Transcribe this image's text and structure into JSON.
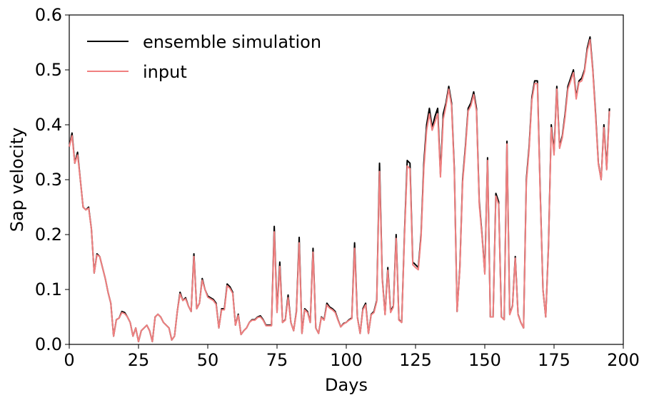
{
  "chart_data": {
    "type": "line",
    "xlabel": "Days",
    "ylabel": "Sap velocity",
    "xlim": [
      0,
      200
    ],
    "xticks": [
      0,
      25,
      50,
      75,
      100,
      125,
      150,
      175,
      200
    ],
    "ylim": [
      0,
      0.6
    ],
    "yticks": [
      {
        "value": 0,
        "label": "0.0"
      },
      0.1,
      0.2,
      0.3,
      0.4,
      0.5,
      0.6
    ],
    "legend": "upper left",
    "x": [
      0,
      1,
      2,
      3,
      4,
      5,
      6,
      7,
      8,
      9,
      10,
      11,
      12,
      13,
      14,
      15,
      16,
      17,
      18,
      19,
      20,
      21,
      22,
      23,
      24,
      25,
      26,
      27,
      28,
      29,
      30,
      31,
      32,
      33,
      34,
      35,
      36,
      37,
      38,
      39,
      40,
      41,
      42,
      43,
      44,
      45,
      46,
      47,
      48,
      49,
      50,
      51,
      52,
      53,
      54,
      55,
      56,
      57,
      58,
      59,
      60,
      61,
      62,
      63,
      64,
      65,
      66,
      67,
      68,
      69,
      70,
      71,
      72,
      73,
      74,
      75,
      76,
      77,
      78,
      79,
      80,
      81,
      82,
      83,
      84,
      85,
      86,
      87,
      88,
      89,
      90,
      91,
      92,
      93,
      94,
      95,
      96,
      97,
      98,
      99,
      100,
      101,
      102,
      103,
      104,
      105,
      106,
      107,
      108,
      109,
      110,
      111,
      112,
      113,
      114,
      115,
      116,
      117,
      118,
      119,
      120,
      121,
      122,
      123,
      124,
      125,
      126,
      127,
      128,
      129,
      130,
      131,
      132,
      133,
      134,
      135,
      136,
      137,
      138,
      139,
      140,
      141,
      142,
      143,
      144,
      145,
      146,
      147,
      148,
      149,
      150,
      151,
      152,
      153,
      154,
      155,
      156,
      157,
      158,
      159,
      160,
      161,
      162,
      163,
      164,
      165,
      166,
      167,
      168,
      169,
      170,
      171,
      172,
      173,
      174,
      175,
      176,
      177,
      178,
      179,
      180,
      181,
      182,
      183,
      184,
      185,
      186,
      187,
      188,
      189,
      190,
      191,
      192,
      193,
      194,
      195
    ],
    "series": [
      {
        "name": "ensemble simulation",
        "color": "#000000",
        "values": [
          0.36,
          0.385,
          0.33,
          0.35,
          0.3,
          0.25,
          0.245,
          0.25,
          0.21,
          0.13,
          0.165,
          0.16,
          0.14,
          0.12,
          0.095,
          0.075,
          0.015,
          0.045,
          0.048,
          0.06,
          0.058,
          0.05,
          0.04,
          0.015,
          0.03,
          0.005,
          0.025,
          0.03,
          0.035,
          0.025,
          0.005,
          0.05,
          0.055,
          0.05,
          0.04,
          0.035,
          0.03,
          0.008,
          0.015,
          0.06,
          0.095,
          0.08,
          0.085,
          0.07,
          0.06,
          0.165,
          0.065,
          0.075,
          0.12,
          0.1,
          0.088,
          0.085,
          0.082,
          0.075,
          0.03,
          0.065,
          0.065,
          0.11,
          0.105,
          0.095,
          0.035,
          0.055,
          0.018,
          0.025,
          0.03,
          0.04,
          0.045,
          0.045,
          0.05,
          0.052,
          0.045,
          0.035,
          0.035,
          0.035,
          0.215,
          0.06,
          0.15,
          0.04,
          0.045,
          0.09,
          0.04,
          0.025,
          0.06,
          0.195,
          0.02,
          0.065,
          0.06,
          0.04,
          0.175,
          0.03,
          0.02,
          0.05,
          0.045,
          0.075,
          0.068,
          0.065,
          0.06,
          0.045,
          0.032,
          0.038,
          0.04,
          0.045,
          0.048,
          0.185,
          0.05,
          0.02,
          0.065,
          0.075,
          0.02,
          0.055,
          0.06,
          0.08,
          0.33,
          0.12,
          0.055,
          0.14,
          0.06,
          0.07,
          0.2,
          0.045,
          0.04,
          0.2,
          0.335,
          0.33,
          0.15,
          0.145,
          0.14,
          0.2,
          0.33,
          0.4,
          0.43,
          0.395,
          0.415,
          0.43,
          0.31,
          0.42,
          0.44,
          0.47,
          0.44,
          0.32,
          0.06,
          0.14,
          0.3,
          0.36,
          0.43,
          0.44,
          0.46,
          0.43,
          0.26,
          0.2,
          0.13,
          0.34,
          0.05,
          0.05,
          0.275,
          0.26,
          0.05,
          0.045,
          0.37,
          0.055,
          0.07,
          0.16,
          0.055,
          0.04,
          0.03,
          0.3,
          0.36,
          0.45,
          0.48,
          0.48,
          0.28,
          0.1,
          0.05,
          0.18,
          0.4,
          0.35,
          0.47,
          0.36,
          0.38,
          0.42,
          0.47,
          0.485,
          0.5,
          0.45,
          0.48,
          0.485,
          0.5,
          0.54,
          0.56,
          0.5,
          0.42,
          0.33,
          0.3,
          0.4,
          0.32,
          0.43
        ]
      },
      {
        "name": "input",
        "color": "#f08080",
        "values": [
          0.36,
          0.38,
          0.33,
          0.345,
          0.3,
          0.25,
          0.245,
          0.248,
          0.21,
          0.13,
          0.163,
          0.16,
          0.14,
          0.12,
          0.095,
          0.075,
          0.015,
          0.045,
          0.048,
          0.058,
          0.056,
          0.05,
          0.04,
          0.015,
          0.03,
          0.005,
          0.025,
          0.03,
          0.035,
          0.025,
          0.005,
          0.05,
          0.055,
          0.05,
          0.04,
          0.035,
          0.03,
          0.008,
          0.015,
          0.06,
          0.092,
          0.08,
          0.083,
          0.07,
          0.06,
          0.16,
          0.065,
          0.075,
          0.117,
          0.1,
          0.086,
          0.083,
          0.08,
          0.073,
          0.03,
          0.063,
          0.063,
          0.107,
          0.102,
          0.093,
          0.035,
          0.053,
          0.018,
          0.025,
          0.03,
          0.04,
          0.044,
          0.044,
          0.049,
          0.05,
          0.044,
          0.034,
          0.034,
          0.034,
          0.205,
          0.058,
          0.142,
          0.04,
          0.044,
          0.085,
          0.04,
          0.025,
          0.058,
          0.185,
          0.02,
          0.063,
          0.058,
          0.04,
          0.168,
          0.03,
          0.02,
          0.049,
          0.044,
          0.072,
          0.066,
          0.063,
          0.058,
          0.044,
          0.032,
          0.037,
          0.04,
          0.044,
          0.047,
          0.175,
          0.049,
          0.02,
          0.063,
          0.072,
          0.02,
          0.054,
          0.058,
          0.078,
          0.315,
          0.117,
          0.054,
          0.135,
          0.058,
          0.068,
          0.193,
          0.044,
          0.04,
          0.195,
          0.325,
          0.32,
          0.145,
          0.14,
          0.136,
          0.195,
          0.32,
          0.39,
          0.42,
          0.39,
          0.405,
          0.42,
          0.305,
          0.41,
          0.435,
          0.465,
          0.435,
          0.315,
          0.06,
          0.137,
          0.295,
          0.355,
          0.425,
          0.435,
          0.455,
          0.425,
          0.255,
          0.197,
          0.128,
          0.335,
          0.05,
          0.05,
          0.27,
          0.255,
          0.05,
          0.045,
          0.365,
          0.054,
          0.069,
          0.157,
          0.054,
          0.04,
          0.03,
          0.295,
          0.355,
          0.445,
          0.475,
          0.475,
          0.275,
          0.1,
          0.05,
          0.177,
          0.395,
          0.345,
          0.465,
          0.357,
          0.377,
          0.415,
          0.465,
          0.48,
          0.495,
          0.447,
          0.477,
          0.48,
          0.497,
          0.535,
          0.555,
          0.497,
          0.415,
          0.328,
          0.3,
          0.395,
          0.318,
          0.425
        ]
      }
    ]
  }
}
